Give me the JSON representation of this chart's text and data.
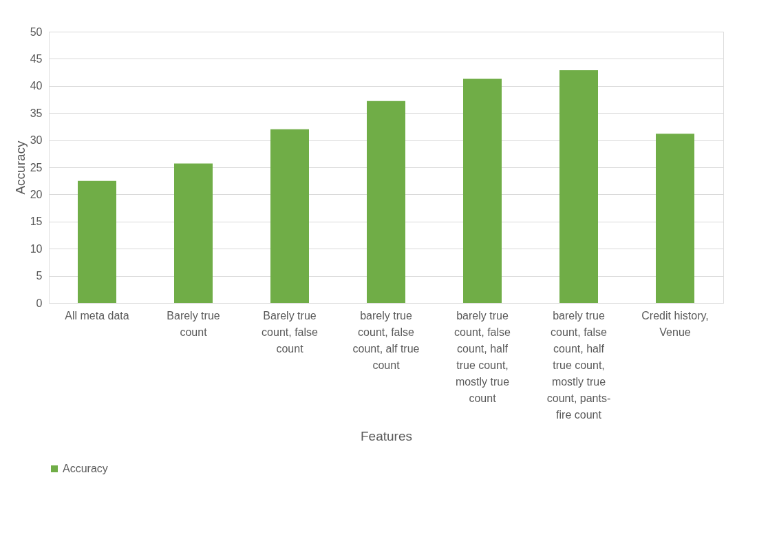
{
  "chart_data": {
    "type": "bar",
    "xlabel": "Features",
    "ylabel": "Accuracy",
    "categories": [
      "All meta data",
      "Barely true count",
      "Barely true count, false count",
      "barely true count, false count, alf true count",
      "barely true count, false count, half true count, mostly true count",
      "barely true count, false count, half true count, mostly true count, pants-fire count",
      "Credit history, Venue"
    ],
    "series": [
      {
        "name": "Accuracy",
        "color": "#70ad47",
        "values": [
          22.5,
          25.7,
          32.0,
          37.2,
          41.3,
          42.9,
          31.2
        ]
      }
    ],
    "ylim": [
      0,
      50
    ],
    "yticks": [
      0,
      5,
      10,
      15,
      20,
      25,
      30,
      35,
      40,
      45,
      50
    ],
    "grid": "y",
    "legend": "bottom"
  }
}
